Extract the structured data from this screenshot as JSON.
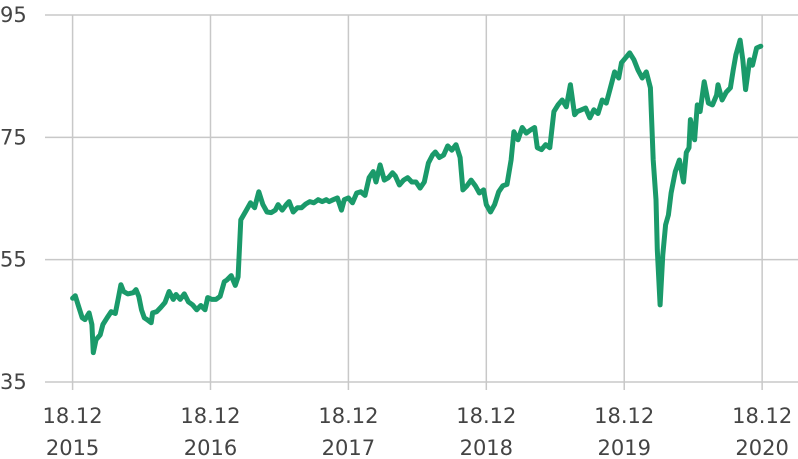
{
  "chart_data": {
    "type": "line",
    "x": [
      2015.96,
      2015.98,
      2016.0,
      2016.03,
      2016.05,
      2016.08,
      2016.1,
      2016.11,
      2016.13,
      2016.16,
      2016.18,
      2016.21,
      2016.24,
      2016.27,
      2016.29,
      2016.31,
      2016.33,
      2016.36,
      2016.4,
      2016.42,
      2016.44,
      2016.46,
      2016.48,
      2016.5,
      2016.53,
      2016.54,
      2016.57,
      2016.6,
      2016.63,
      2016.66,
      2016.69,
      2016.71,
      2016.74,
      2016.77,
      2016.8,
      2016.83,
      2016.86,
      2016.89,
      2016.92,
      2016.94,
      2016.97,
      2017.0,
      2017.03,
      2017.06,
      2017.08,
      2017.11,
      2017.14,
      2017.16,
      2017.18,
      2017.2,
      2017.22,
      2017.25,
      2017.28,
      2017.31,
      2017.34,
      2017.37,
      2017.4,
      2017.43,
      2017.45,
      2017.48,
      2017.51,
      2017.53,
      2017.56,
      2017.59,
      2017.62,
      2017.65,
      2017.68,
      2017.71,
      2017.74,
      2017.77,
      2017.8,
      2017.82,
      2017.85,
      2017.88,
      2017.91,
      2017.93,
      2017.96,
      2017.99,
      2018.02,
      2018.05,
      2018.08,
      2018.11,
      2018.14,
      2018.16,
      2018.19,
      2018.22,
      2018.25,
      2018.28,
      2018.3,
      2018.33,
      2018.36,
      2018.39,
      2018.42,
      2018.45,
      2018.48,
      2018.51,
      2018.54,
      2018.57,
      2018.59,
      2018.62,
      2018.65,
      2018.68,
      2018.71,
      2018.74,
      2018.77,
      2018.79,
      2018.82,
      2018.85,
      2018.88,
      2018.91,
      2018.94,
      2018.96,
      2018.99,
      2019.02,
      2019.05,
      2019.08,
      2019.11,
      2019.14,
      2019.16,
      2019.19,
      2019.22,
      2019.25,
      2019.28,
      2019.31,
      2019.33,
      2019.36,
      2019.39,
      2019.42,
      2019.45,
      2019.48,
      2019.51,
      2019.54,
      2019.57,
      2019.6,
      2019.62,
      2019.65,
      2019.68,
      2019.71,
      2019.74,
      2019.77,
      2019.8,
      2019.83,
      2019.86,
      2019.89,
      2019.92,
      2019.94,
      2019.97,
      2020.0,
      2020.03,
      2020.06,
      2020.09,
      2020.12,
      2020.15,
      2020.17,
      2020.19,
      2020.2,
      2020.22,
      2020.24,
      2020.26,
      2020.28,
      2020.3,
      2020.33,
      2020.36,
      2020.39,
      2020.41,
      2020.43,
      2020.44,
      2020.47,
      2020.49,
      2020.51,
      2020.54,
      2020.57,
      2020.6,
      2020.63,
      2020.64,
      2020.67,
      2020.7,
      2020.73,
      2020.75,
      2020.77,
      2020.8,
      2020.82,
      2020.84,
      2020.87,
      2020.89,
      2020.92,
      2020.95
    ],
    "series": [
      {
        "color": "#1a9a6a",
        "values": [
          48.7,
          49.1,
          47.6,
          45.5,
          45.2,
          46.3,
          44.4,
          39.8,
          41.9,
          42.7,
          44.4,
          45.5,
          46.5,
          46.2,
          48.5,
          50.9,
          49.8,
          49.4,
          49.6,
          50.1,
          49.0,
          46.8,
          45.5,
          45.2,
          44.7,
          46.3,
          46.5,
          47.2,
          48.0,
          49.8,
          48.5,
          49.3,
          48.5,
          49.4,
          48.1,
          47.6,
          46.8,
          47.5,
          46.8,
          48.8,
          48.5,
          48.5,
          49.0,
          51.4,
          51.7,
          52.4,
          50.8,
          52.2,
          61.5,
          62.3,
          63.1,
          64.3,
          63.5,
          66.1,
          64.0,
          62.8,
          62.7,
          63.1,
          64.0,
          63.1,
          64.0,
          64.5,
          62.8,
          63.5,
          63.5,
          64.1,
          64.5,
          64.3,
          64.8,
          64.5,
          64.8,
          64.5,
          64.8,
          65.1,
          63.1,
          64.8,
          65.1,
          64.3,
          65.9,
          66.1,
          65.5,
          68.4,
          69.4,
          67.7,
          70.5,
          68.0,
          68.4,
          69.2,
          68.7,
          67.2,
          68.0,
          68.4,
          67.7,
          67.7,
          66.7,
          67.7,
          70.8,
          72.1,
          72.6,
          71.7,
          72.1,
          73.6,
          72.9,
          73.8,
          71.7,
          66.4,
          67.1,
          68.0,
          67.1,
          65.9,
          66.4,
          64.0,
          62.8,
          64.0,
          66.1,
          67.1,
          67.3,
          71.3,
          75.9,
          74.6,
          76.6,
          75.7,
          76.2,
          76.6,
          73.3,
          73.0,
          73.8,
          73.3,
          79.2,
          80.3,
          81.1,
          80.0,
          83.6,
          78.7,
          79.2,
          79.5,
          79.8,
          78.2,
          79.5,
          78.9,
          81.1,
          80.6,
          83.1,
          85.7,
          84.7,
          87.2,
          88.0,
          88.8,
          87.7,
          86.0,
          84.7,
          85.7,
          83.1,
          71.3,
          64.8,
          56.6,
          47.6,
          55.8,
          60.7,
          62.3,
          65.9,
          69.4,
          71.3,
          67.7,
          72.5,
          73.3,
          77.9,
          74.6,
          80.3,
          79.2,
          84.1,
          80.6,
          80.3,
          81.9,
          83.6,
          81.1,
          82.4,
          83.1,
          86.0,
          88.5,
          90.9,
          87.7,
          82.8,
          87.7,
          86.8,
          89.6,
          89.9
        ]
      }
    ],
    "xlim": [
      2015.76,
      2021.22
    ],
    "xticks": [
      {
        "value": 2015.96,
        "label": "18.12\n2015"
      },
      {
        "value": 2016.96,
        "label": "18.12\n2016"
      },
      {
        "value": 2017.96,
        "label": "18.12\n2017"
      },
      {
        "value": 2018.96,
        "label": "18.12\n2018"
      },
      {
        "value": 2019.96,
        "label": "18.12\n2019"
      },
      {
        "value": 2020.96,
        "label": "18.12\n2020"
      }
    ],
    "ylim": [
      35,
      95
    ],
    "yticks": [
      35,
      55,
      75,
      95
    ],
    "grid": true
  }
}
